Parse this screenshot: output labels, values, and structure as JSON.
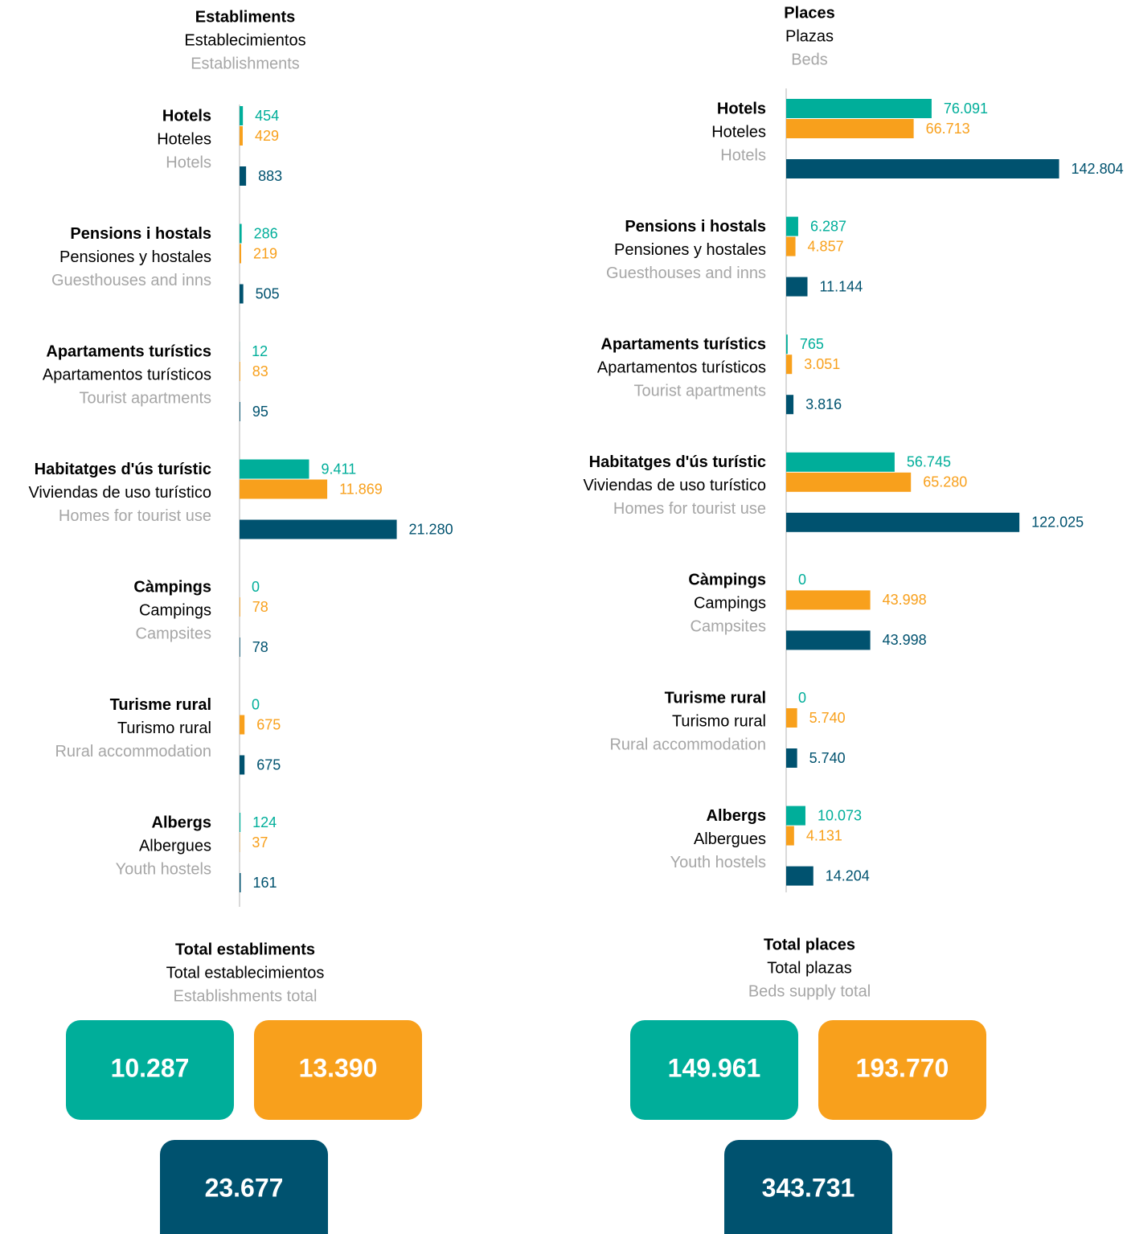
{
  "chart_data": [
    {
      "type": "bar",
      "orientation": "horizontal",
      "title": [
        "Establiments",
        "Establecimientos",
        "Establishments"
      ],
      "categories": [
        [
          "Hotels",
          "Hoteles",
          "Hotels"
        ],
        [
          "Pensions i hostals",
          "Pensiones y hostales",
          "Guesthouses and inns"
        ],
        [
          "Apartaments turístics",
          "Apartamentos turísticos",
          "Tourist apartments"
        ],
        [
          "Habitatges d'ús turístic",
          "Viviendas de uso turístico",
          "Homes for tourist use"
        ],
        [
          "Càmpings",
          "Campings",
          "Campsites"
        ],
        [
          "Turisme rural",
          "Turismo rural",
          "Rural accommodation"
        ],
        [
          "Albergs",
          "Albergues",
          "Youth hostels"
        ]
      ],
      "series": [
        {
          "color": "#00ae9a",
          "values": [
            454,
            286,
            12,
            9411,
            0,
            0,
            124
          ],
          "value_labels": [
            "454",
            "286",
            "12",
            "9.411",
            "0",
            "0",
            "124"
          ]
        },
        {
          "color": "#f8a01c",
          "values": [
            429,
            219,
            83,
            11869,
            78,
            675,
            37
          ],
          "value_labels": [
            "429",
            "219",
            "83",
            "11.869",
            "78",
            "675",
            "37"
          ]
        },
        {
          "color": "#00526f",
          "values": [
            883,
            505,
            95,
            21280,
            78,
            675,
            161
          ],
          "value_labels": [
            "883",
            "505",
            "95",
            "21.280",
            "78",
            "675",
            "161"
          ]
        }
      ],
      "xlim": [
        0,
        37000
      ],
      "totals": {
        "title": [
          "Total establiments",
          "Total establecimientos",
          "Establishments total"
        ],
        "values": [
          10287,
          13390,
          23677
        ],
        "value_labels": [
          "10.287",
          "13.390",
          "23.677"
        ]
      }
    },
    {
      "type": "bar",
      "orientation": "horizontal",
      "title": [
        "Places",
        "Plazas",
        "Beds"
      ],
      "categories": [
        [
          "Hotels",
          "Hoteles",
          "Hotels"
        ],
        [
          "Pensions i hostals",
          "Pensiones y hostales",
          "Guesthouses and inns"
        ],
        [
          "Apartaments turístics",
          "Apartamentos turísticos",
          "Tourist apartments"
        ],
        [
          "Habitatges d'ús turístic",
          "Viviendas de uso turístico",
          "Homes for tourist use"
        ],
        [
          "Càmpings",
          "Campings",
          "Campsites"
        ],
        [
          "Turisme rural",
          "Turismo rural",
          "Rural accommodation"
        ],
        [
          "Albergs",
          "Albergues",
          "Youth hostels"
        ]
      ],
      "series": [
        {
          "color": "#00ae9a",
          "values": [
            76091,
            6287,
            765,
            56745,
            0,
            0,
            10073
          ],
          "value_labels": [
            "76.091",
            "6.287",
            "765",
            "56.745",
            "0",
            "0",
            "10.073"
          ]
        },
        {
          "color": "#f8a01c",
          "values": [
            66713,
            4857,
            3051,
            65280,
            43998,
            5740,
            4131
          ],
          "value_labels": [
            "66.713",
            "4.857",
            "3.051",
            "65.280",
            "43.998",
            "5.740",
            "4.131"
          ]
        },
        {
          "color": "#00526f",
          "values": [
            142804,
            11144,
            3816,
            122025,
            43998,
            5740,
            14204
          ],
          "value_labels": [
            "142.804",
            "11.144",
            "3.816",
            "122.025",
            "43.998",
            "5.740",
            "14.204"
          ]
        }
      ],
      "xlim": [
        0,
        143000
      ],
      "totals": {
        "title": [
          "Total places",
          "Total plazas",
          "Beds supply total"
        ],
        "values": [
          149961,
          193770,
          343731
        ],
        "value_labels": [
          "149.961",
          "193.770",
          "343.731"
        ]
      }
    }
  ]
}
